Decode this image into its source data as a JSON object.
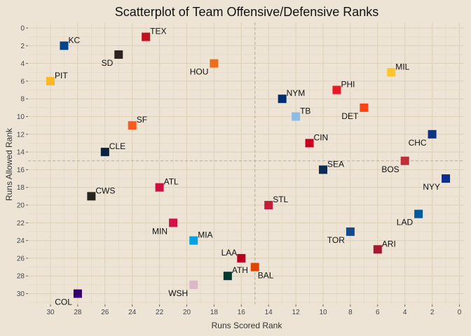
{
  "chart_data": {
    "type": "scatter",
    "title": "Scatterplot of Team Offensive/Defensive Ranks",
    "xlabel": "Runs Scored Rank",
    "ylabel": "Runs Allowed Rank",
    "xlim": [
      31.5,
      -0.5
    ],
    "ylim": [
      31,
      -0.5
    ],
    "x_reversed": true,
    "y_reversed": true,
    "xticks": [
      30,
      28,
      26,
      24,
      22,
      20,
      18,
      16,
      14,
      12,
      10,
      8,
      6,
      4,
      2,
      0
    ],
    "yticks": [
      0,
      2,
      4,
      6,
      8,
      10,
      12,
      14,
      16,
      18,
      20,
      22,
      24,
      26,
      28,
      30
    ],
    "xticks_display": [
      "30",
      "28",
      "26",
      "24",
      "22",
      "20",
      "18",
      "16",
      "14",
      "12",
      "10",
      "8",
      "6",
      "4",
      "2",
      "0"
    ],
    "yticks_display": [
      "0",
      "2",
      "4",
      "6",
      "8",
      "10",
      "12",
      "14",
      "16",
      "18",
      "20",
      "22",
      "24",
      "26",
      "28",
      "30"
    ],
    "reference_lines": {
      "x": 15,
      "y": 15
    },
    "grid": true,
    "points": [
      {
        "label": "KC",
        "x": 29,
        "y": 2,
        "color": "#004687",
        "label_pos": "ne"
      },
      {
        "label": "TEX",
        "x": 23,
        "y": 1,
        "color": "#c0111f",
        "label_pos": "ne"
      },
      {
        "label": "SD",
        "x": 25,
        "y": 3,
        "color": "#2f241d",
        "label_pos": "sw"
      },
      {
        "label": "HOU",
        "x": 18,
        "y": 4,
        "color": "#eb6e1f",
        "label_pos": "sw"
      },
      {
        "label": "PIT",
        "x": 30,
        "y": 6,
        "color": "#fdb827",
        "label_pos": "ne"
      },
      {
        "label": "MIL",
        "x": 5,
        "y": 5,
        "color": "#ffc52f",
        "label_pos": "ne"
      },
      {
        "label": "PHI",
        "x": 9,
        "y": 7,
        "color": "#e81828",
        "label_pos": "ne"
      },
      {
        "label": "NYM",
        "x": 13,
        "y": 8,
        "color": "#002d72",
        "label_pos": "ne"
      },
      {
        "label": "DET",
        "x": 7,
        "y": 9,
        "color": "#fa4616",
        "label_pos": "sw"
      },
      {
        "label": "TB",
        "x": 12,
        "y": 10,
        "color": "#8fbce6",
        "label_pos": "ne"
      },
      {
        "label": "SF",
        "x": 24,
        "y": 11,
        "color": "#fd5a1e",
        "label_pos": "ne"
      },
      {
        "label": "CIN",
        "x": 11,
        "y": 13,
        "color": "#c6011f",
        "label_pos": "ne"
      },
      {
        "label": "CHC",
        "x": 2,
        "y": 12,
        "color": "#0e3386",
        "label_pos": "sw"
      },
      {
        "label": "CLE",
        "x": 26,
        "y": 14,
        "color": "#0c2340",
        "label_pos": "ne"
      },
      {
        "label": "SEA",
        "x": 10,
        "y": 16,
        "color": "#0c2c56",
        "label_pos": "ne"
      },
      {
        "label": "BOS",
        "x": 4,
        "y": 15,
        "color": "#bd3039",
        "label_pos": "sw"
      },
      {
        "label": "NYY",
        "x": 1,
        "y": 17,
        "color": "#0c2d8c",
        "label_pos": "sw"
      },
      {
        "label": "ATL",
        "x": 22,
        "y": 18,
        "color": "#ce1141",
        "label_pos": "ne"
      },
      {
        "label": "CWS",
        "x": 27,
        "y": 19,
        "color": "#27251f",
        "label_pos": "ne"
      },
      {
        "label": "STL",
        "x": 14,
        "y": 20,
        "color": "#c41e3a",
        "label_pos": "ne"
      },
      {
        "label": "LAD",
        "x": 3,
        "y": 21,
        "color": "#005a9c",
        "label_pos": "sw"
      },
      {
        "label": "MIN",
        "x": 21,
        "y": 22,
        "color": "#d31145",
        "label_pos": "sw"
      },
      {
        "label": "TOR",
        "x": 8,
        "y": 23,
        "color": "#134a8e",
        "label_pos": "sw"
      },
      {
        "label": "MIA",
        "x": 19.5,
        "y": 24,
        "color": "#00a3e0",
        "label_pos": "ne"
      },
      {
        "label": "ARI",
        "x": 6,
        "y": 25,
        "color": "#a71930",
        "label_pos": "ne"
      },
      {
        "label": "LAA",
        "x": 16,
        "y": 26,
        "color": "#ba0021",
        "label_pos": "nw"
      },
      {
        "label": "BAL",
        "x": 15,
        "y": 27,
        "color": "#df4601",
        "label_pos": "se"
      },
      {
        "label": "ATH",
        "x": 17,
        "y": 28,
        "color": "#003831",
        "label_pos": "ne"
      },
      {
        "label": "WSH",
        "x": 19.5,
        "y": 29,
        "color": "#dcb8c8",
        "label_pos": "sw"
      },
      {
        "label": "COL",
        "x": 28,
        "y": 30,
        "color": "#33006f",
        "label_pos": "sw"
      }
    ]
  }
}
